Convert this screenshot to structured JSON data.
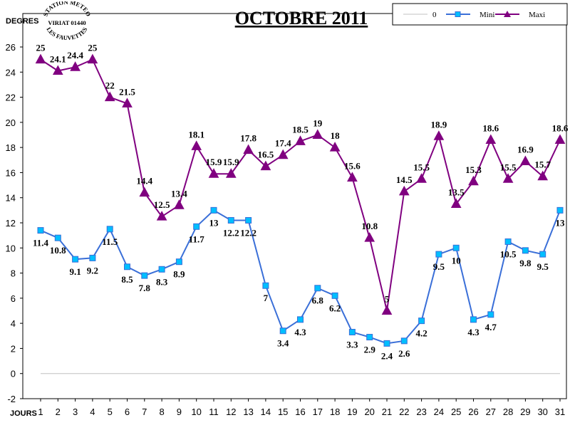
{
  "chart_data": {
    "type": "line",
    "title": "OCTOBRE 2011",
    "ylabel": "DEGRES",
    "xlabel": "JOURS",
    "ylim": [
      -2,
      26
    ],
    "yticks": [
      -2,
      0,
      2,
      4,
      6,
      8,
      10,
      12,
      14,
      16,
      18,
      20,
      22,
      24,
      26
    ],
    "categories": [
      "1",
      "2",
      "3",
      "4",
      "5",
      "6",
      "7",
      "8",
      "9",
      "10",
      "11",
      "12",
      "13",
      "14",
      "15",
      "16",
      "17",
      "18",
      "19",
      "20",
      "21",
      "22",
      "23",
      "24",
      "25",
      "26",
      "27",
      "28",
      "29",
      "30",
      "31"
    ],
    "legend_position": "top-right",
    "series": [
      {
        "name": "0",
        "color": "#c0c0c0",
        "marker": "none",
        "values": [
          0,
          0,
          0,
          0,
          0,
          0,
          0,
          0,
          0,
          0,
          0,
          0,
          0,
          0,
          0,
          0,
          0,
          0,
          0,
          0,
          0,
          0,
          0,
          0,
          0,
          0,
          0,
          0,
          0,
          0,
          0
        ]
      },
      {
        "name": "Mini",
        "color": "#3a6fd8",
        "marker": "square-cyan",
        "values": [
          11.4,
          10.8,
          9.1,
          9.2,
          11.5,
          8.5,
          7.8,
          8.3,
          8.9,
          11.7,
          13,
          12.2,
          12.2,
          7,
          3.4,
          4.3,
          6.8,
          6.2,
          3.3,
          2.9,
          2.4,
          2.6,
          4.2,
          9.5,
          10,
          4.3,
          4.7,
          10.5,
          9.8,
          9.5,
          13
        ]
      },
      {
        "name": "Maxi",
        "color": "#800080",
        "marker": "triangle",
        "values": [
          25,
          24.1,
          24.4,
          25,
          22,
          21.5,
          14.4,
          12.5,
          13.4,
          18.1,
          15.9,
          15.9,
          17.8,
          16.5,
          17.4,
          18.5,
          19,
          18,
          15.6,
          10.8,
          5,
          14.5,
          15.5,
          18.9,
          13.5,
          15.3,
          18.6,
          15.5,
          16.9,
          15.7,
          18.6
        ]
      }
    ]
  },
  "stamp": {
    "line1": "STATION METEO",
    "line2": "VIRIAT 01440",
    "line3": "LES FAUVETTES"
  }
}
